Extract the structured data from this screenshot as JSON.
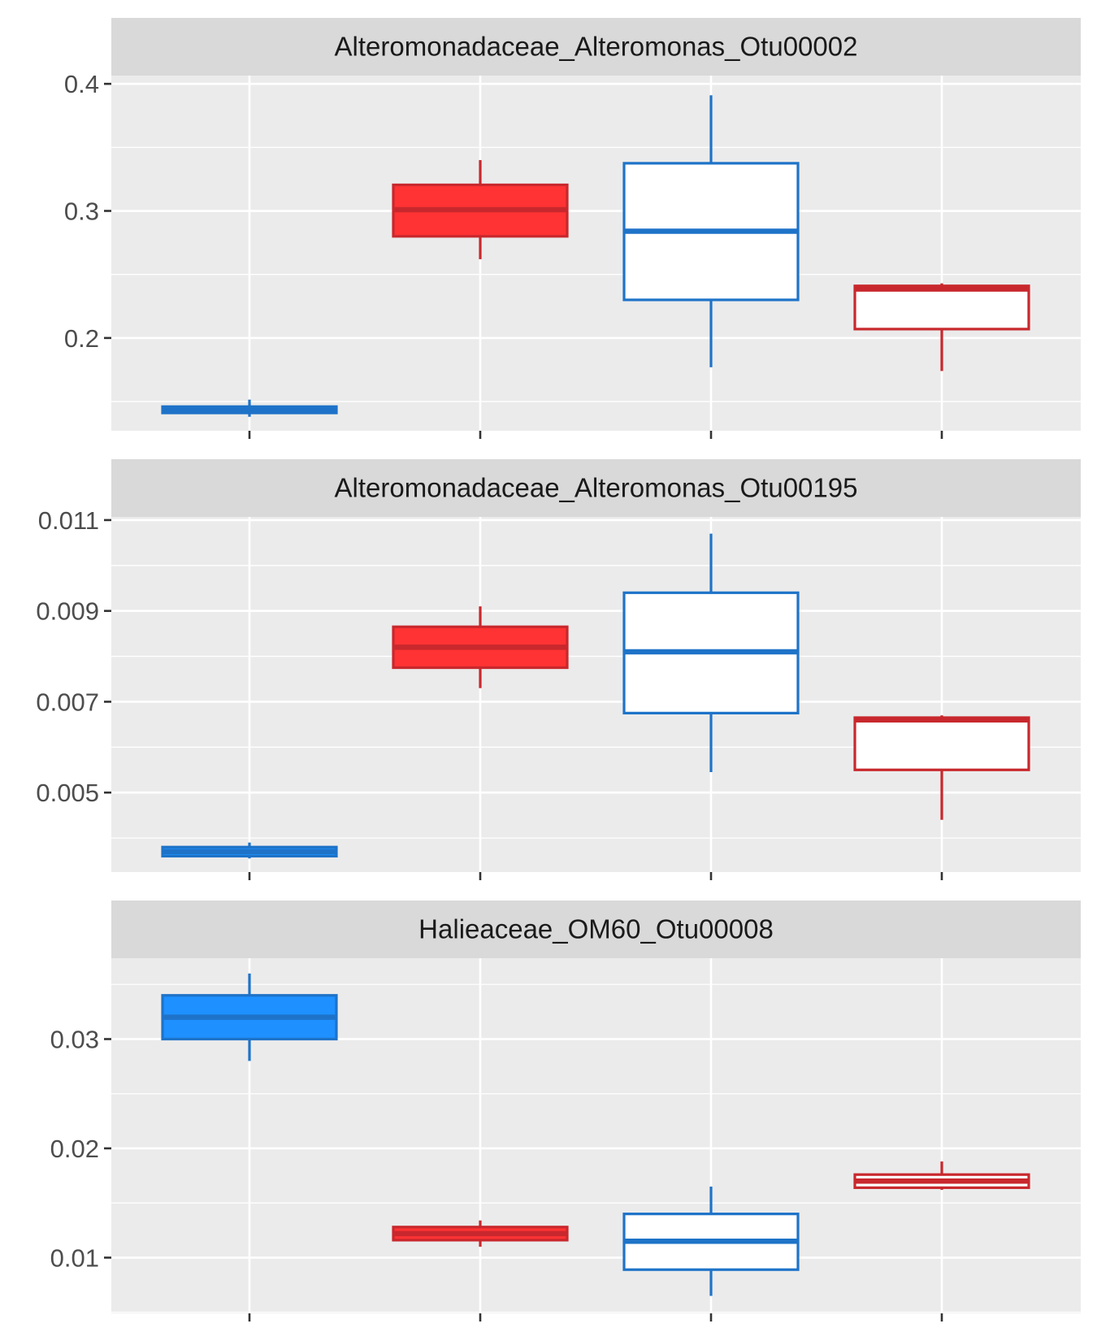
{
  "colors": {
    "panel_bg": "#ebebeb",
    "strip_bg": "#d9d9d9",
    "grid": "#ffffff",
    "tick": "#333333",
    "blue": "#1e73c8",
    "blue_fill": "#1e90ff",
    "red": "#c8282d",
    "red_fill": "#ff3333",
    "hollow_fill": "#ffffff"
  },
  "chart_data": [
    {
      "type": "box",
      "title": "Alteromonadaceae_Alteromonas_Otu00002",
      "ylim": [
        0.127,
        0.4065
      ],
      "yticks": [
        0.2,
        0.3,
        0.4
      ],
      "ytick_labels": [
        "0.2",
        "0.3",
        "0.4"
      ],
      "yminor": [
        0.15,
        0.25,
        0.35
      ],
      "boxes": [
        {
          "stroke": "blue",
          "fill": "blue_fill",
          "min": 0.138,
          "q1": 0.141,
          "median": 0.143,
          "q3": 0.146,
          "max": 0.1515
        },
        {
          "stroke": "red",
          "fill": "red_fill",
          "min": 0.262,
          "q1": 0.28,
          "median": 0.301,
          "q3": 0.3205,
          "max": 0.34
        },
        {
          "stroke": "blue",
          "fill": "hollow_fill",
          "min": 0.177,
          "q1": 0.23,
          "median": 0.284,
          "q3": 0.3375,
          "max": 0.391
        },
        {
          "stroke": "red",
          "fill": "hollow_fill",
          "min": 0.174,
          "q1": 0.207,
          "median": 0.2385,
          "q3": 0.241,
          "max": 0.243
        }
      ]
    },
    {
      "type": "box",
      "title": "Alteromonadaceae_Alteromonas_Otu00195",
      "ylim": [
        0.00325,
        0.01107
      ],
      "yticks": [
        0.005,
        0.007,
        0.009,
        0.011
      ],
      "ytick_labels": [
        "0.005",
        "0.007",
        "0.009",
        "0.011"
      ],
      "yminor": [
        0.004,
        0.006,
        0.008,
        0.01
      ],
      "boxes": [
        {
          "stroke": "blue",
          "fill": "blue_fill",
          "min": 0.00355,
          "q1": 0.0036,
          "median": 0.0037,
          "q3": 0.0038,
          "max": 0.0039
        },
        {
          "stroke": "red",
          "fill": "red_fill",
          "min": 0.0073,
          "q1": 0.00775,
          "median": 0.0082,
          "q3": 0.00865,
          "max": 0.0091
        },
        {
          "stroke": "blue",
          "fill": "hollow_fill",
          "min": 0.00545,
          "q1": 0.00675,
          "median": 0.0081,
          "q3": 0.0094,
          "max": 0.0107
        },
        {
          "stroke": "red",
          "fill": "hollow_fill",
          "min": 0.0044,
          "q1": 0.0055,
          "median": 0.0066,
          "q3": 0.00665,
          "max": 0.0067
        }
      ]
    },
    {
      "type": "box",
      "title": "Halieaceae_OM60_Otu00008",
      "ylim": [
        0.0049,
        0.0374
      ],
      "yticks": [
        0.01,
        0.02,
        0.03
      ],
      "ytick_labels": [
        "0.01",
        "0.02",
        "0.03"
      ],
      "yminor": [
        0.005,
        0.015,
        0.025,
        0.035
      ],
      "boxes": [
        {
          "stroke": "blue",
          "fill": "blue_fill",
          "min": 0.028,
          "q1": 0.03,
          "median": 0.032,
          "q3": 0.034,
          "max": 0.036
        },
        {
          "stroke": "red",
          "fill": "red_fill",
          "min": 0.011,
          "q1": 0.0116,
          "median": 0.0122,
          "q3": 0.0128,
          "max": 0.0134
        },
        {
          "stroke": "blue",
          "fill": "hollow_fill",
          "min": 0.0065,
          "q1": 0.0089,
          "median": 0.0115,
          "q3": 0.014,
          "max": 0.0165
        },
        {
          "stroke": "red",
          "fill": "hollow_fill",
          "min": 0.0162,
          "q1": 0.0164,
          "median": 0.017,
          "q3": 0.0176,
          "max": 0.0188
        }
      ]
    }
  ]
}
